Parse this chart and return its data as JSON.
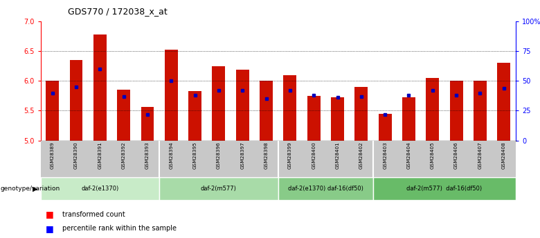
{
  "title": "GDS770 / 172038_x_at",
  "samples": [
    "GSM28389",
    "GSM28390",
    "GSM28391",
    "GSM28392",
    "GSM28393",
    "GSM28394",
    "GSM28395",
    "GSM28396",
    "GSM28397",
    "GSM28398",
    "GSM28399",
    "GSM28400",
    "GSM28401",
    "GSM28402",
    "GSM28403",
    "GSM28404",
    "GSM28405",
    "GSM28406",
    "GSM28407",
    "GSM28408"
  ],
  "transformed_count": [
    6.0,
    6.35,
    6.78,
    5.85,
    5.56,
    6.52,
    5.83,
    6.25,
    6.19,
    6.0,
    6.1,
    5.75,
    5.72,
    5.9,
    5.45,
    5.72,
    6.05,
    6.0,
    6.0,
    6.3
  ],
  "percentile_rank": [
    40,
    45,
    60,
    37,
    22,
    50,
    38,
    42,
    42,
    35,
    42,
    38,
    36,
    37,
    22,
    38,
    42,
    38,
    40,
    44
  ],
  "groups": [
    {
      "label": "daf-2(e1370)",
      "indices": [
        0,
        1,
        2,
        3,
        4
      ],
      "color": "#c8ebc8"
    },
    {
      "label": "daf-2(m577)",
      "indices": [
        5,
        6,
        7,
        8,
        9
      ],
      "color": "#a8dba8"
    },
    {
      "label": "daf-2(e1370) daf-16(df50)",
      "indices": [
        10,
        11,
        12,
        13
      ],
      "color": "#88cb88"
    },
    {
      "label": "daf-2(m577)  daf-16(df50)",
      "indices": [
        14,
        15,
        16,
        17,
        18,
        19
      ],
      "color": "#68bb68"
    }
  ],
  "ylim": [
    5.0,
    7.0
  ],
  "y_ticks": [
    5.0,
    5.5,
    6.0,
    6.5,
    7.0
  ],
  "y2_ticks": [
    0,
    25,
    50,
    75,
    100
  ],
  "y2_ticklabels": [
    "0",
    "25",
    "50",
    "75",
    "100%"
  ],
  "bar_color": "#cc1100",
  "dot_color": "#0000bb",
  "bar_width": 0.55,
  "genotype_label": "genotype/variation",
  "legend_transformed": "transformed count",
  "legend_percentile": "percentile rank within the sample"
}
